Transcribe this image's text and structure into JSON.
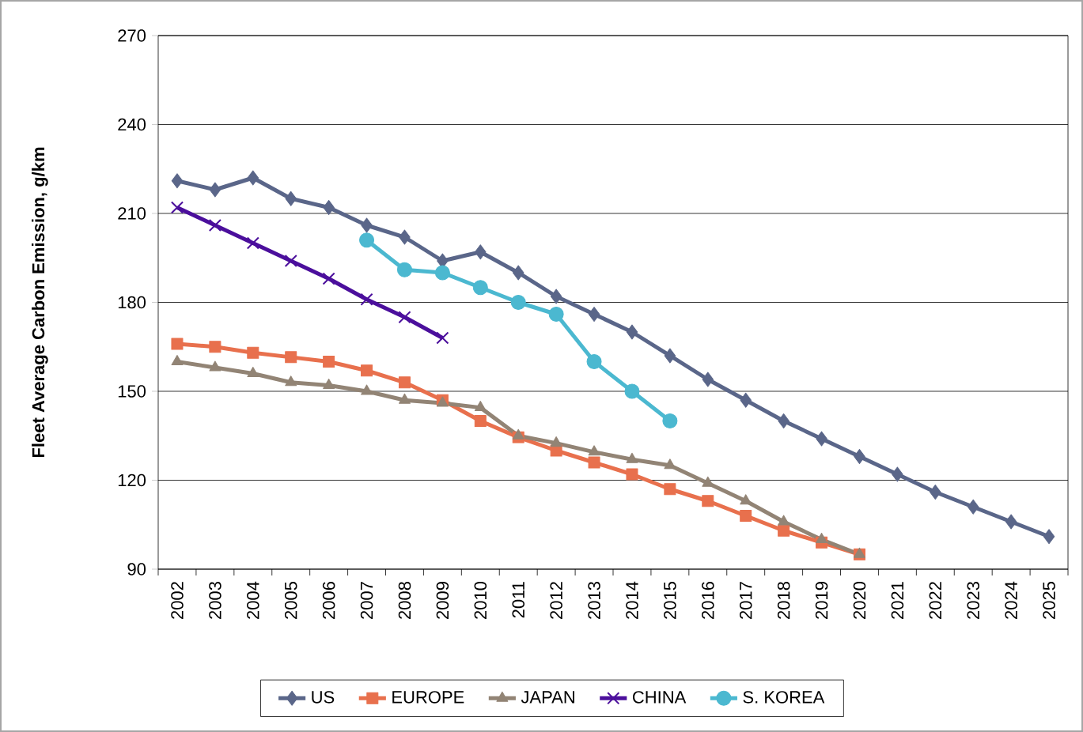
{
  "chart_data": {
    "type": "line",
    "ylabel": "Fleet Average Carbon Emission, g/km",
    "categories": [
      "2002",
      "2003",
      "2004",
      "2005",
      "2006",
      "2007",
      "2008",
      "2009",
      "2010",
      "2011",
      "2012",
      "2013",
      "2014",
      "2015",
      "2016",
      "2017",
      "2018",
      "2019",
      "2020",
      "2021",
      "2022",
      "2023",
      "2024",
      "2025"
    ],
    "ylim": [
      90,
      270
    ],
    "yticks": [
      90,
      120,
      150,
      180,
      210,
      240,
      270
    ],
    "grid": "y",
    "legend": "bottom",
    "series": [
      {
        "name": "US",
        "color": "#5a6689",
        "marker": "diamond",
        "values": [
          221,
          218,
          222,
          215,
          212,
          206,
          202,
          194,
          197,
          190,
          182,
          176,
          170,
          162,
          154,
          147,
          140,
          134,
          128,
          122,
          116,
          111,
          106,
          101
        ]
      },
      {
        "name": "EUROPE",
        "color": "#e8704d",
        "marker": "square",
        "values": [
          166,
          165,
          163,
          161.5,
          160,
          157,
          153,
          147,
          140,
          134.5,
          130,
          126,
          122,
          117,
          113,
          108,
          103,
          99,
          95,
          null,
          null,
          null,
          null,
          null
        ]
      },
      {
        "name": "JAPAN",
        "color": "#928475",
        "marker": "triangle",
        "values": [
          160,
          158,
          156,
          153,
          152,
          150,
          147,
          146,
          144.5,
          135,
          132.5,
          129.5,
          127,
          125,
          119,
          113,
          106,
          100,
          95,
          null,
          null,
          null,
          null,
          null
        ]
      },
      {
        "name": "CHINA",
        "color": "#4b0f9c",
        "marker": "cross",
        "values": [
          212,
          206,
          200,
          194,
          188,
          181,
          175,
          168,
          null,
          null,
          null,
          null,
          null,
          null,
          null,
          null,
          null,
          null,
          null,
          null,
          null,
          null,
          null,
          null
        ]
      },
      {
        "name": "S. KOREA",
        "color": "#4bb8d0",
        "marker": "circle",
        "values": [
          null,
          null,
          null,
          null,
          null,
          201,
          191,
          190,
          185,
          180,
          176,
          160,
          150,
          140,
          null,
          null,
          null,
          null,
          null,
          null,
          null,
          null,
          null,
          null
        ]
      }
    ]
  }
}
